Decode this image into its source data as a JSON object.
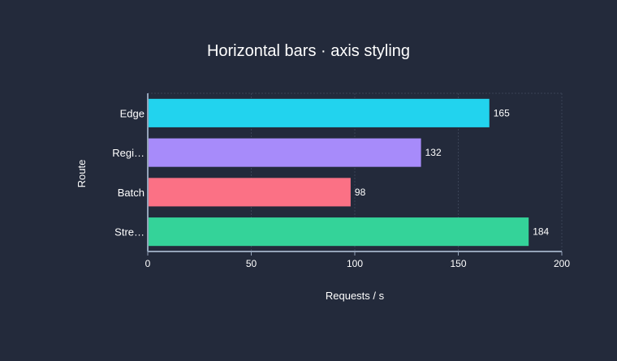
{
  "chart_data": {
    "type": "bar",
    "orientation": "horizontal",
    "title": "Horizontal bars · axis styling",
    "xlabel": "Requests / s",
    "ylabel": "Route",
    "categories": [
      "Edge",
      "Regi…",
      "Batch",
      "Stre…"
    ],
    "values": [
      165,
      132,
      98,
      184
    ],
    "bar_colors": [
      "#22d3ee",
      "#a78bfa",
      "#fb7185",
      "#34d399"
    ],
    "xlim": [
      0,
      200
    ],
    "xticks": [
      0,
      50,
      100,
      150,
      200
    ],
    "grid": true,
    "data_labels": [
      "165",
      "132",
      "98",
      "184"
    ]
  },
  "colors": {
    "background": "#232a3b",
    "text": "#ffffff",
    "axis": "#94a3b8",
    "grid": "#3a4356"
  }
}
